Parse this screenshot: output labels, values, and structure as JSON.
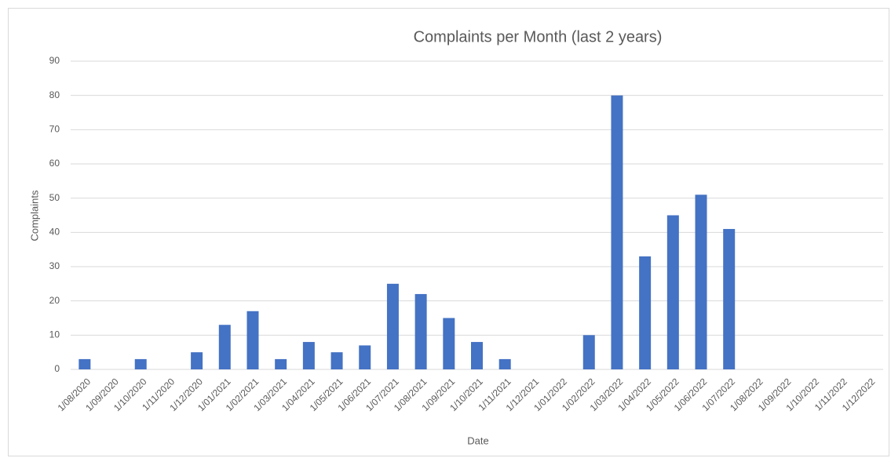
{
  "chart_data": {
    "type": "bar",
    "title": "Complaints per Month (last 2 years)",
    "x_label": "Date",
    "y_label": "Complaints",
    "categories": [
      "1/08/2020",
      "1/09/2020",
      "1/10/2020",
      "1/11/2020",
      "1/12/2020",
      "1/01/2021",
      "1/02/2021",
      "1/03/2021",
      "1/04/2021",
      "1/05/2021",
      "1/06/2021",
      "1/07/2021",
      "1/08/2021",
      "1/09/2021",
      "1/10/2021",
      "1/11/2021",
      "1/12/2021",
      "1/01/2022",
      "1/02/2022",
      "1/03/2022",
      "1/04/2022",
      "1/05/2022",
      "1/06/2022",
      "1/07/2022",
      "1/08/2022",
      "1/09/2022",
      "1/10/2022",
      "1/11/2022",
      "1/12/2022"
    ],
    "values": [
      3,
      0,
      3,
      0,
      5,
      13,
      17,
      3,
      8,
      5,
      7,
      25,
      22,
      15,
      8,
      3,
      0,
      0,
      10,
      80,
      33,
      45,
      51,
      41,
      0,
      0,
      0,
      0,
      0
    ],
    "color": "#4472c4",
    "ylim": [
      0,
      90
    ],
    "yticks": [
      0,
      10,
      20,
      30,
      40,
      50,
      60,
      70,
      80,
      90
    ],
    "grid": true
  }
}
